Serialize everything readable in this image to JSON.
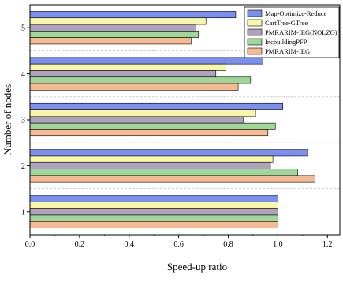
{
  "chart_data": {
    "type": "bar",
    "orientation": "horizontal",
    "title": "",
    "xlabel": "Speed-up ratio",
    "ylabel": "Number of nodes",
    "categories": [
      "1",
      "2",
      "3",
      "4",
      "5"
    ],
    "xlim": [
      0.0,
      1.25
    ],
    "xticks": [
      "0.0",
      "0.2",
      "0.4",
      "0.6",
      "0.8",
      "1.0",
      "1.2"
    ],
    "grid": "dashed horizontal separators between categories",
    "legend_position": "top-right",
    "series": [
      {
        "name": "Map-Optimize-Reduce",
        "color": "#7b8ff0",
        "values": [
          1.0,
          1.12,
          1.02,
          0.94,
          0.83
        ]
      },
      {
        "name": "CartTree-GTree",
        "color": "#f7f7a6",
        "values": [
          1.0,
          0.98,
          0.91,
          0.79,
          0.71
        ]
      },
      {
        "name": "PMRARIM-IEG(NOLZO)",
        "color": "#b0a2be",
        "values": [
          1.0,
          0.97,
          0.86,
          0.75,
          0.67
        ]
      },
      {
        "name": "IncbuildingPFP",
        "color": "#9ed797",
        "values": [
          1.0,
          1.08,
          0.99,
          0.89,
          0.68
        ]
      },
      {
        "name": "PMRARIM-IEG",
        "color": "#f5b993",
        "values": [
          1.0,
          1.15,
          0.96,
          0.84,
          0.65
        ]
      }
    ]
  }
}
